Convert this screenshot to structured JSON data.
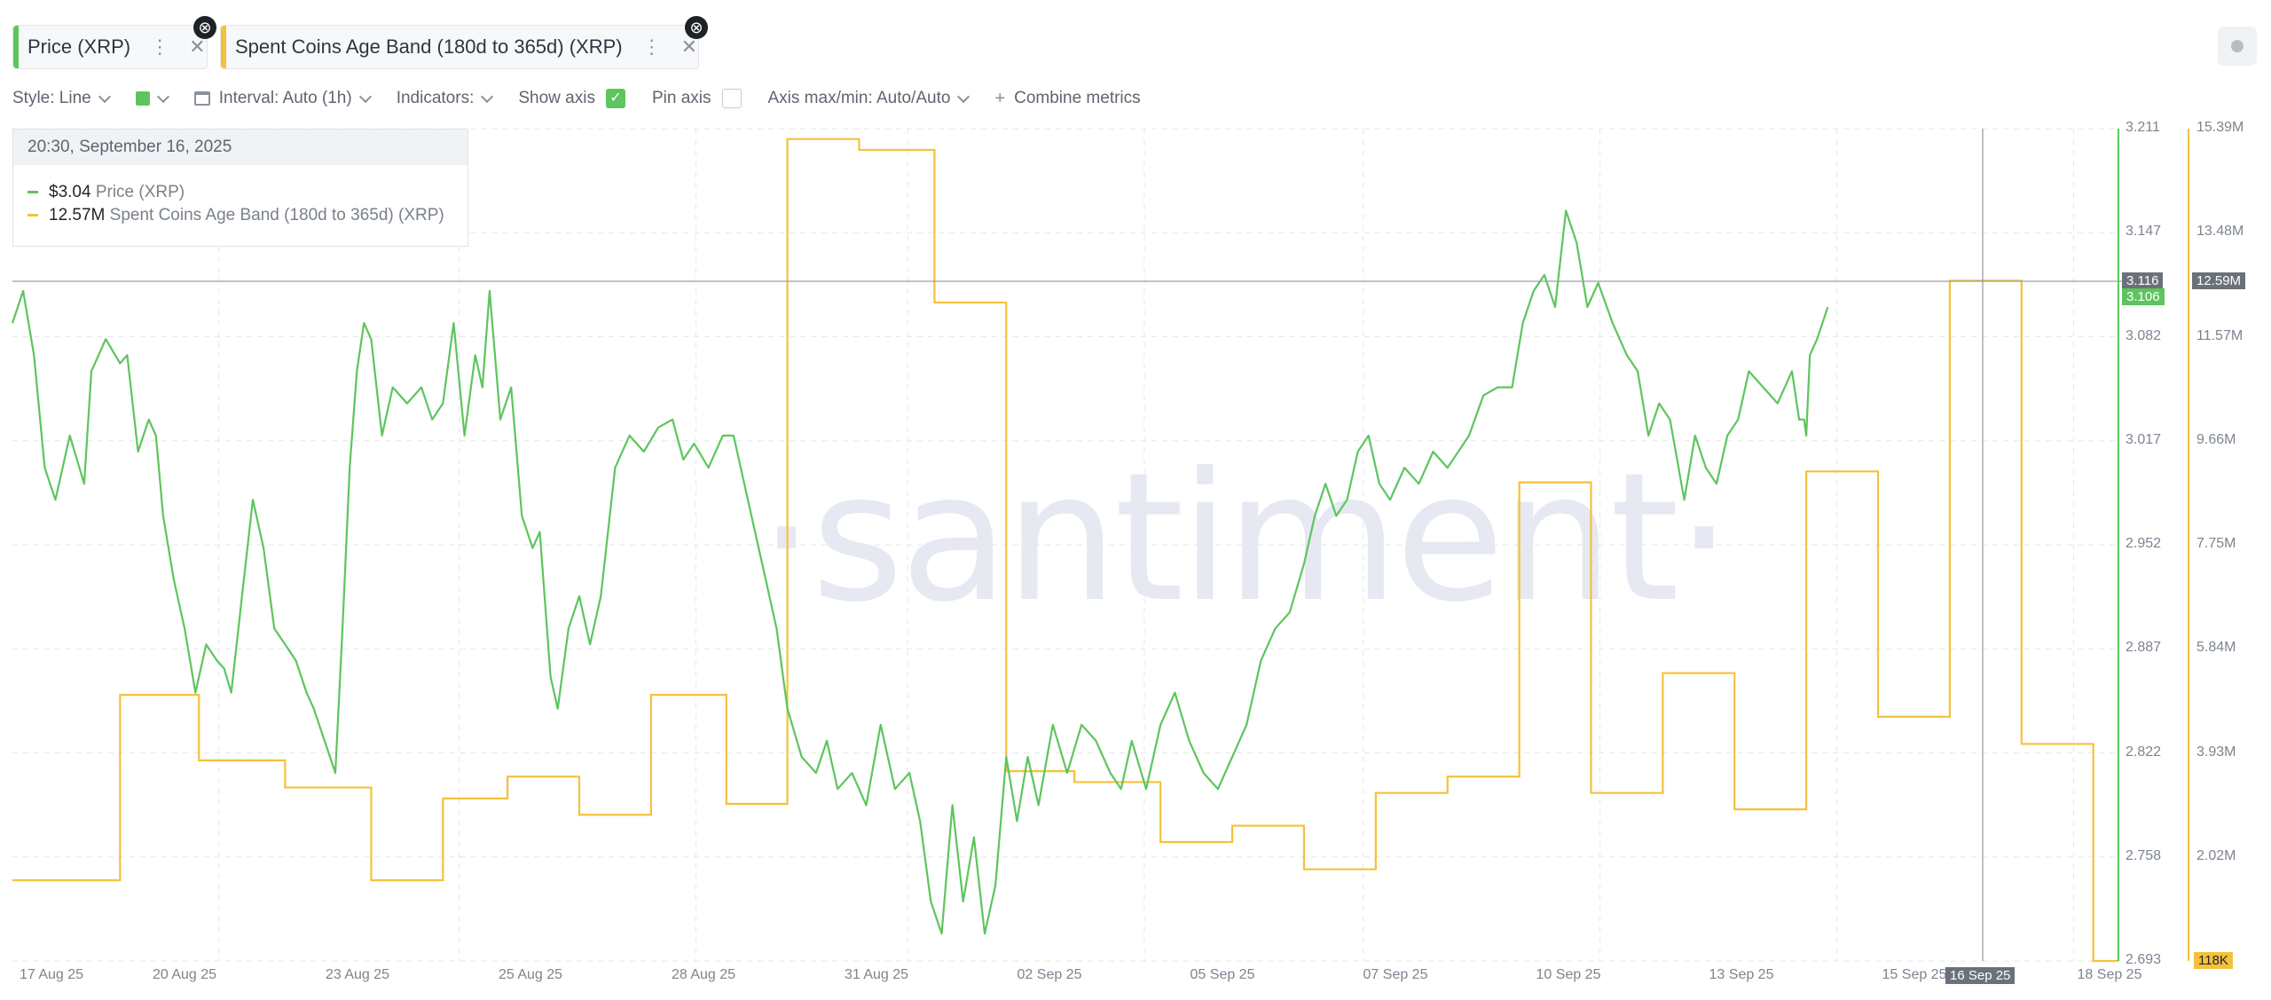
{
  "metric_tabs": [
    {
      "label": "Price (XRP)",
      "color": "#5dc55d"
    },
    {
      "label": "Spent Coins Age Band (180d to 365d) (XRP)",
      "color": "#f5c13b"
    }
  ],
  "toolbar": {
    "style": "Style: Line",
    "interval": "Interval: Auto (1h)",
    "indicators": "Indicators:",
    "show_axis": "Show axis",
    "show_axis_checked": true,
    "pin_axis": "Pin axis",
    "pin_axis_checked": false,
    "axis_maxmin": "Axis max/min: Auto/Auto",
    "combine": "Combine metrics"
  },
  "tooltip": {
    "date": "20:30, September 16, 2025",
    "price_value": "$3.04",
    "price_name": "Price (XRP)",
    "spent_value": "12.57M",
    "spent_name": "Spent Coins Age Band (180d to 365d) (XRP)"
  },
  "watermark": "·santiment·",
  "chart_data": {
    "type": "line",
    "x_tick_labels": [
      "17 Aug 25",
      "20 Aug 25",
      "23 Aug 25",
      "25 Aug 25",
      "28 Aug 25",
      "31 Aug 25",
      "02 Sep 25",
      "05 Sep 25",
      "07 Sep 25",
      "10 Sep 25",
      "13 Sep 25",
      "15 Sep 25",
      "18 Sep 25"
    ],
    "x_range": [
      "2025-08-16",
      "2025-09-18"
    ],
    "y_left": {
      "ticks": [
        "3.211",
        "3.147",
        "3.082",
        "3.017",
        "2.952",
        "2.887",
        "2.822",
        "2.758",
        "2.693"
      ],
      "range": [
        2.693,
        3.211
      ]
    },
    "y_right": {
      "ticks": [
        "15.39M",
        "13.48M",
        "11.57M",
        "9.66M",
        "7.75M",
        "5.84M",
        "3.93M",
        "2.02M"
      ],
      "range": [
        0.118,
        15.39
      ]
    },
    "crosshair": {
      "x_label": "16 Sep 25",
      "price_label": "3.116",
      "price_current": "3.106",
      "spent_label": "12.59M",
      "spent_bottom": "118K"
    },
    "grid": true,
    "series": [
      {
        "name": "Price (XRP)",
        "color": "#5dc55d",
        "axis": "left",
        "points": [
          [
            0.0,
            3.09
          ],
          [
            0.15,
            3.11
          ],
          [
            0.3,
            3.07
          ],
          [
            0.45,
            3.0
          ],
          [
            0.6,
            2.98
          ],
          [
            0.8,
            3.02
          ],
          [
            1.0,
            2.99
          ],
          [
            1.1,
            3.06
          ],
          [
            1.3,
            3.08
          ],
          [
            1.5,
            3.065
          ],
          [
            1.6,
            3.07
          ],
          [
            1.75,
            3.01
          ],
          [
            1.9,
            3.03
          ],
          [
            2.0,
            3.02
          ],
          [
            2.1,
            2.97
          ],
          [
            2.25,
            2.93
          ],
          [
            2.4,
            2.9
          ],
          [
            2.55,
            2.86
          ],
          [
            2.7,
            2.89
          ],
          [
            2.85,
            2.88
          ],
          [
            2.95,
            2.875
          ],
          [
            3.05,
            2.86
          ],
          [
            3.2,
            2.92
          ],
          [
            3.35,
            2.98
          ],
          [
            3.5,
            2.95
          ],
          [
            3.65,
            2.9
          ],
          [
            3.8,
            2.89
          ],
          [
            3.95,
            2.88
          ],
          [
            4.1,
            2.86
          ],
          [
            4.2,
            2.85
          ],
          [
            4.35,
            2.83
          ],
          [
            4.5,
            2.81
          ],
          [
            4.6,
            2.9
          ],
          [
            4.7,
            3.0
          ],
          [
            4.8,
            3.06
          ],
          [
            4.9,
            3.09
          ],
          [
            5.0,
            3.08
          ],
          [
            5.15,
            3.02
          ],
          [
            5.3,
            3.05
          ],
          [
            5.5,
            3.04
          ],
          [
            5.7,
            3.05
          ],
          [
            5.85,
            3.03
          ],
          [
            6.0,
            3.04
          ],
          [
            6.15,
            3.09
          ],
          [
            6.3,
            3.02
          ],
          [
            6.45,
            3.07
          ],
          [
            6.55,
            3.05
          ],
          [
            6.65,
            3.11
          ],
          [
            6.8,
            3.03
          ],
          [
            6.95,
            3.05
          ],
          [
            7.1,
            2.97
          ],
          [
            7.25,
            2.95
          ],
          [
            7.35,
            2.96
          ],
          [
            7.5,
            2.87
          ],
          [
            7.6,
            2.85
          ],
          [
            7.75,
            2.9
          ],
          [
            7.9,
            2.92
          ],
          [
            8.05,
            2.89
          ],
          [
            8.2,
            2.92
          ],
          [
            8.4,
            3.0
          ],
          [
            8.6,
            3.02
          ],
          [
            8.8,
            3.01
          ],
          [
            9.0,
            3.025
          ],
          [
            9.2,
            3.03
          ],
          [
            9.35,
            3.005
          ],
          [
            9.5,
            3.015
          ],
          [
            9.7,
            3.0
          ],
          [
            9.9,
            3.02
          ],
          [
            10.05,
            3.02
          ],
          [
            10.3,
            2.97
          ],
          [
            10.5,
            2.93
          ],
          [
            10.65,
            2.9
          ],
          [
            10.8,
            2.85
          ],
          [
            11.0,
            2.82
          ],
          [
            11.2,
            2.81
          ],
          [
            11.35,
            2.83
          ],
          [
            11.5,
            2.8
          ],
          [
            11.7,
            2.81
          ],
          [
            11.9,
            2.79
          ],
          [
            12.1,
            2.84
          ],
          [
            12.3,
            2.8
          ],
          [
            12.5,
            2.81
          ],
          [
            12.65,
            2.78
          ],
          [
            12.8,
            2.73
          ],
          [
            12.95,
            2.71
          ],
          [
            13.1,
            2.79
          ],
          [
            13.25,
            2.73
          ],
          [
            13.4,
            2.77
          ],
          [
            13.55,
            2.71
          ],
          [
            13.7,
            2.74
          ],
          [
            13.85,
            2.82
          ],
          [
            14.0,
            2.78
          ],
          [
            14.15,
            2.82
          ],
          [
            14.3,
            2.79
          ],
          [
            14.5,
            2.84
          ],
          [
            14.7,
            2.81
          ],
          [
            14.9,
            2.84
          ],
          [
            15.1,
            2.83
          ],
          [
            15.3,
            2.81
          ],
          [
            15.45,
            2.8
          ],
          [
            15.6,
            2.83
          ],
          [
            15.8,
            2.8
          ],
          [
            16.0,
            2.84
          ],
          [
            16.2,
            2.86
          ],
          [
            16.4,
            2.83
          ],
          [
            16.6,
            2.81
          ],
          [
            16.8,
            2.8
          ],
          [
            17.0,
            2.82
          ],
          [
            17.2,
            2.84
          ],
          [
            17.4,
            2.88
          ],
          [
            17.6,
            2.9
          ],
          [
            17.8,
            2.91
          ],
          [
            18.0,
            2.94
          ],
          [
            18.15,
            2.97
          ],
          [
            18.3,
            2.99
          ],
          [
            18.45,
            2.97
          ],
          [
            18.6,
            2.98
          ],
          [
            18.75,
            3.01
          ],
          [
            18.9,
            3.02
          ],
          [
            19.05,
            2.99
          ],
          [
            19.2,
            2.98
          ],
          [
            19.4,
            3.0
          ],
          [
            19.6,
            2.99
          ],
          [
            19.8,
            3.01
          ],
          [
            20.0,
            3.0
          ],
          [
            20.15,
            3.01
          ],
          [
            20.3,
            3.02
          ],
          [
            20.5,
            3.045
          ],
          [
            20.7,
            3.05
          ],
          [
            20.9,
            3.05
          ],
          [
            21.05,
            3.09
          ],
          [
            21.2,
            3.11
          ],
          [
            21.35,
            3.12
          ],
          [
            21.5,
            3.1
          ],
          [
            21.65,
            3.16
          ],
          [
            21.8,
            3.14
          ],
          [
            21.95,
            3.1
          ],
          [
            22.1,
            3.115
          ],
          [
            22.3,
            3.09
          ],
          [
            22.5,
            3.07
          ],
          [
            22.65,
            3.06
          ],
          [
            22.8,
            3.02
          ],
          [
            22.95,
            3.04
          ],
          [
            23.1,
            3.03
          ],
          [
            23.3,
            2.98
          ],
          [
            23.45,
            3.02
          ],
          [
            23.6,
            3.0
          ],
          [
            23.75,
            2.99
          ],
          [
            23.9,
            3.02
          ],
          [
            24.05,
            3.03
          ],
          [
            24.2,
            3.06
          ],
          [
            24.4,
            3.05
          ],
          [
            24.6,
            3.04
          ],
          [
            24.8,
            3.06
          ],
          [
            24.9,
            3.03
          ],
          [
            24.97,
            3.03
          ],
          [
            25.0,
            3.02
          ],
          [
            25.05,
            3.07
          ],
          [
            25.15,
            3.08
          ],
          [
            25.3,
            3.1
          ]
        ]
      },
      {
        "name": "Spent Coins Age Band (180d to 365d) (XRP)",
        "color": "#f5c13b",
        "axis": "right",
        "steps": [
          [
            0.0,
            1.6
          ],
          [
            1.5,
            5.0
          ],
          [
            2.6,
            3.8
          ],
          [
            3.8,
            3.3
          ],
          [
            5.0,
            1.6
          ],
          [
            6.0,
            3.1
          ],
          [
            6.9,
            3.5
          ],
          [
            7.9,
            2.8
          ],
          [
            8.9,
            5.0
          ],
          [
            9.95,
            3.0
          ],
          [
            10.8,
            15.2
          ],
          [
            11.8,
            15.0
          ],
          [
            12.85,
            12.2
          ],
          [
            13.85,
            3.6
          ],
          [
            14.8,
            3.4
          ],
          [
            16.0,
            2.3
          ],
          [
            17.0,
            2.6
          ],
          [
            18.0,
            1.8
          ],
          [
            19.0,
            3.2
          ],
          [
            20.0,
            3.5
          ],
          [
            21.0,
            8.9
          ],
          [
            22.0,
            3.2
          ],
          [
            23.0,
            5.4
          ],
          [
            24.0,
            2.9
          ],
          [
            25.0,
            9.1
          ],
          [
            26.0,
            4.6
          ],
          [
            27.0,
            12.6
          ],
          [
            28.0,
            4.1
          ],
          [
            29.0,
            0.118
          ]
        ]
      }
    ]
  }
}
